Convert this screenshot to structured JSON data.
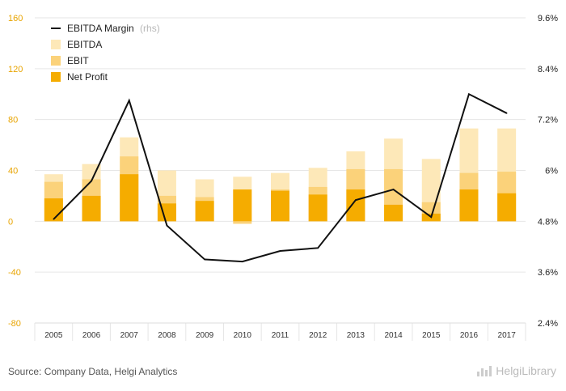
{
  "source_text": "Source: Company Data, Helgi Analytics",
  "logo_text": "HelgiLibrary",
  "colors": {
    "ebitda": "#fde8b8",
    "ebit": "#fbd27a",
    "net_profit": "#f5ac00",
    "margin_line": "#111111",
    "left_axis_text": "#e8a400"
  },
  "chart_data": {
    "type": "bar",
    "categories": [
      "2005",
      "2006",
      "2007",
      "2008",
      "2009",
      "2010",
      "2011",
      "2012",
      "2013",
      "2014",
      "2015",
      "2016",
      "2017"
    ],
    "left_ticks": [
      "160",
      "120",
      "80",
      "40",
      "0",
      "-40",
      "-80"
    ],
    "right_ticks": [
      "9.6%",
      "8.4%",
      "7.2%",
      "6%",
      "4.8%",
      "3.6%",
      "2.4%"
    ],
    "ylim_left": [
      -80,
      160
    ],
    "ylim_right": [
      2.4,
      9.6
    ],
    "grid": true,
    "legend_position": "top-left",
    "series": [
      {
        "name": "EBITDA",
        "kind": "bar",
        "values": [
          37,
          45,
          66,
          40,
          33,
          35,
          38,
          42,
          55,
          65,
          49,
          73,
          73
        ]
      },
      {
        "name": "EBIT",
        "kind": "bar",
        "values": [
          31,
          33,
          51,
          20,
          19,
          -2,
          25,
          27,
          41,
          41,
          15,
          38,
          39
        ]
      },
      {
        "name": "Net Profit",
        "kind": "bar",
        "values": [
          18,
          20,
          37,
          14,
          16,
          25,
          24,
          21,
          25,
          13,
          6,
          25,
          22
        ]
      },
      {
        "name": "EBITDA Margin",
        "legend_suffix": "(rhs)",
        "kind": "line",
        "axis": "right",
        "values": [
          4.85,
          5.75,
          7.65,
          4.7,
          3.9,
          3.85,
          4.1,
          4.17,
          5.3,
          5.55,
          4.9,
          7.8,
          7.35
        ]
      }
    ]
  }
}
